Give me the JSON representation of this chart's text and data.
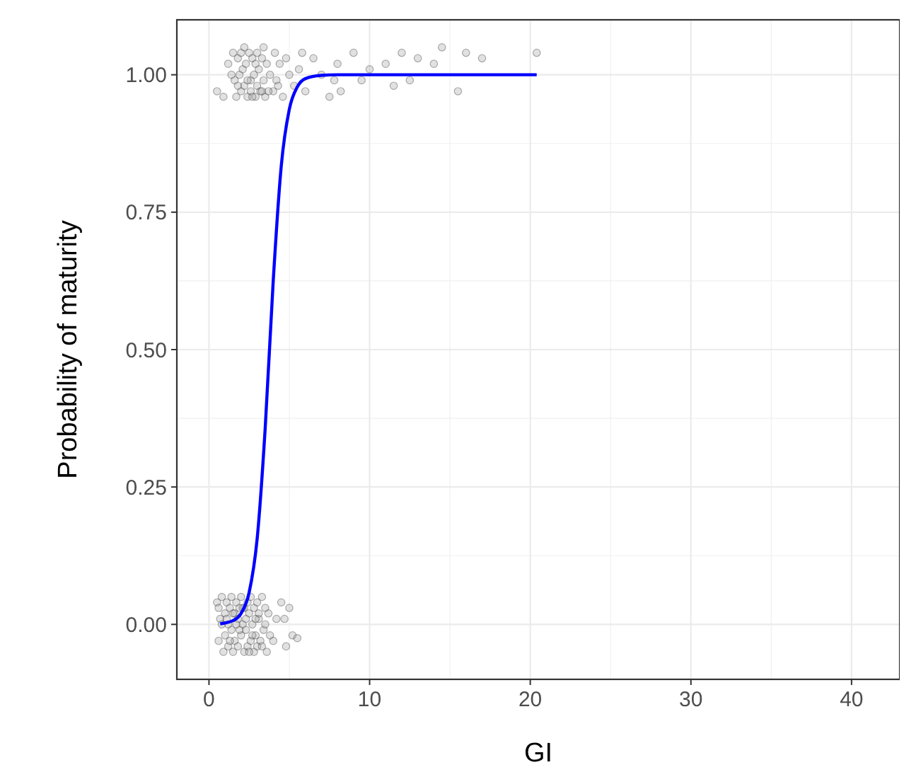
{
  "chart_data": {
    "type": "scatter",
    "xlabel": "GI",
    "ylabel": "Probability of maturity",
    "xlim": [
      -2,
      43
    ],
    "ylim": [
      -0.1,
      1.1
    ],
    "xticks": [
      0,
      10,
      20,
      30,
      40
    ],
    "yticks": [
      {
        "value": 0,
        "label": "0.00"
      },
      {
        "value": 0.25,
        "label": "0.25"
      },
      {
        "value": 0.5,
        "label": "0.50"
      },
      {
        "value": 0.75,
        "label": "0.75"
      },
      {
        "value": 1,
        "label": "1.00"
      }
    ],
    "grid": true,
    "series": [
      {
        "marker": "circle",
        "color": "#aaaaaa",
        "x": [
          0.5,
          0.9,
          1.2,
          1.5,
          1.6,
          1.7,
          1.8,
          1.9,
          2.0,
          2.0,
          2.1,
          2.2,
          2.2,
          2.3,
          2.4,
          2.5,
          2.6,
          2.6,
          2.7,
          2.8,
          2.9,
          3.0,
          3.0,
          3.1,
          3.2,
          3.3,
          3.4,
          3.4,
          3.5,
          3.6,
          3.8,
          4.0,
          4.1,
          4.2,
          4.4,
          4.6,
          4.8,
          5.0,
          5.3,
          5.6,
          6.0,
          6.5,
          7.0,
          7.5,
          8.0,
          8.2,
          9.0,
          9.5,
          10.0,
          11.0,
          11.5,
          12.0,
          12.5,
          13.0,
          14.0,
          14.5,
          15.5,
          16.0,
          17.0,
          20.4,
          1.4,
          2.4,
          2.9,
          3.7,
          4.3,
          1.8,
          2.7,
          3.3,
          5.8,
          7.8
        ],
        "values": [
          0.97,
          0.96,
          1.02,
          1.04,
          0.99,
          0.96,
          1.03,
          1.0,
          0.97,
          1.04,
          1.01,
          0.98,
          1.05,
          1.02,
          0.96,
          1.04,
          0.99,
          0.97,
          1.03,
          1.0,
          0.96,
          1.04,
          0.98,
          1.01,
          0.97,
          1.03,
          0.99,
          1.05,
          0.96,
          1.02,
          1.0,
          0.97,
          1.04,
          0.99,
          1.02,
          0.96,
          1.03,
          1.0,
          0.98,
          1.01,
          0.97,
          1.03,
          1.0,
          0.96,
          1.02,
          0.97,
          1.04,
          0.99,
          1.01,
          1.02,
          0.98,
          1.04,
          0.99,
          1.03,
          1.02,
          1.05,
          0.97,
          1.04,
          1.03,
          1.04,
          1.0,
          0.99,
          1.02,
          0.97,
          0.98,
          0.98,
          0.96,
          0.97,
          1.04,
          0.99
        ]
      },
      {
        "marker": "circle",
        "color": "#aaaaaa",
        "x": [
          0.5,
          0.6,
          0.7,
          0.8,
          0.9,
          1.0,
          1.0,
          1.1,
          1.2,
          1.2,
          1.3,
          1.4,
          1.4,
          1.5,
          1.6,
          1.6,
          1.7,
          1.8,
          1.8,
          1.9,
          2.0,
          2.0,
          2.1,
          2.2,
          2.2,
          2.3,
          2.4,
          2.4,
          2.5,
          2.6,
          2.6,
          2.7,
          2.8,
          2.8,
          2.9,
          3.0,
          3.0,
          3.1,
          3.2,
          3.3,
          3.4,
          3.5,
          3.6,
          3.7,
          3.8,
          0.8,
          1.1,
          1.5,
          1.9,
          2.3,
          2.7,
          3.1,
          3.5,
          0.6,
          1.3,
          1.7,
          2.1,
          2.5,
          2.9,
          3.3,
          4.5,
          5.0,
          4.7,
          5.2,
          4.8,
          5.5,
          4.2,
          4.0
        ],
        "values": [
          0.04,
          -0.03,
          0.01,
          0.05,
          -0.05,
          0.02,
          -0.02,
          0.04,
          -0.04,
          0.0,
          0.03,
          -0.01,
          0.05,
          -0.05,
          0.02,
          -0.03,
          0.04,
          0.01,
          -0.04,
          0.03,
          -0.02,
          0.05,
          0.0,
          -0.05,
          0.03,
          -0.01,
          0.04,
          -0.04,
          0.02,
          -0.03,
          0.05,
          0.0,
          -0.05,
          0.03,
          -0.02,
          0.04,
          -0.04,
          0.01,
          -0.03,
          0.05,
          -0.01,
          0.03,
          -0.05,
          0.02,
          -0.02,
          0.0,
          0.01,
          0.02,
          -0.01,
          0.01,
          -0.02,
          0.02,
          0.0,
          0.03,
          -0.03,
          0.0,
          0.03,
          -0.05,
          0.01,
          -0.04,
          0.04,
          0.03,
          0.01,
          -0.02,
          -0.04,
          -0.025,
          0.01,
          -0.03
        ]
      },
      {
        "type": "line",
        "color": "#0000ff",
        "x": [
          0.7,
          1.5,
          2.0,
          2.5,
          3.0,
          3.5,
          4.0,
          4.5,
          5.0,
          5.5,
          6.0,
          7.0,
          8.0,
          10.0,
          20.4
        ],
        "values": [
          0.001,
          0.007,
          0.02,
          0.058,
          0.156,
          0.357,
          0.625,
          0.834,
          0.937,
          0.978,
          0.993,
          0.999,
          1.0,
          1.0,
          1.0
        ]
      }
    ]
  }
}
